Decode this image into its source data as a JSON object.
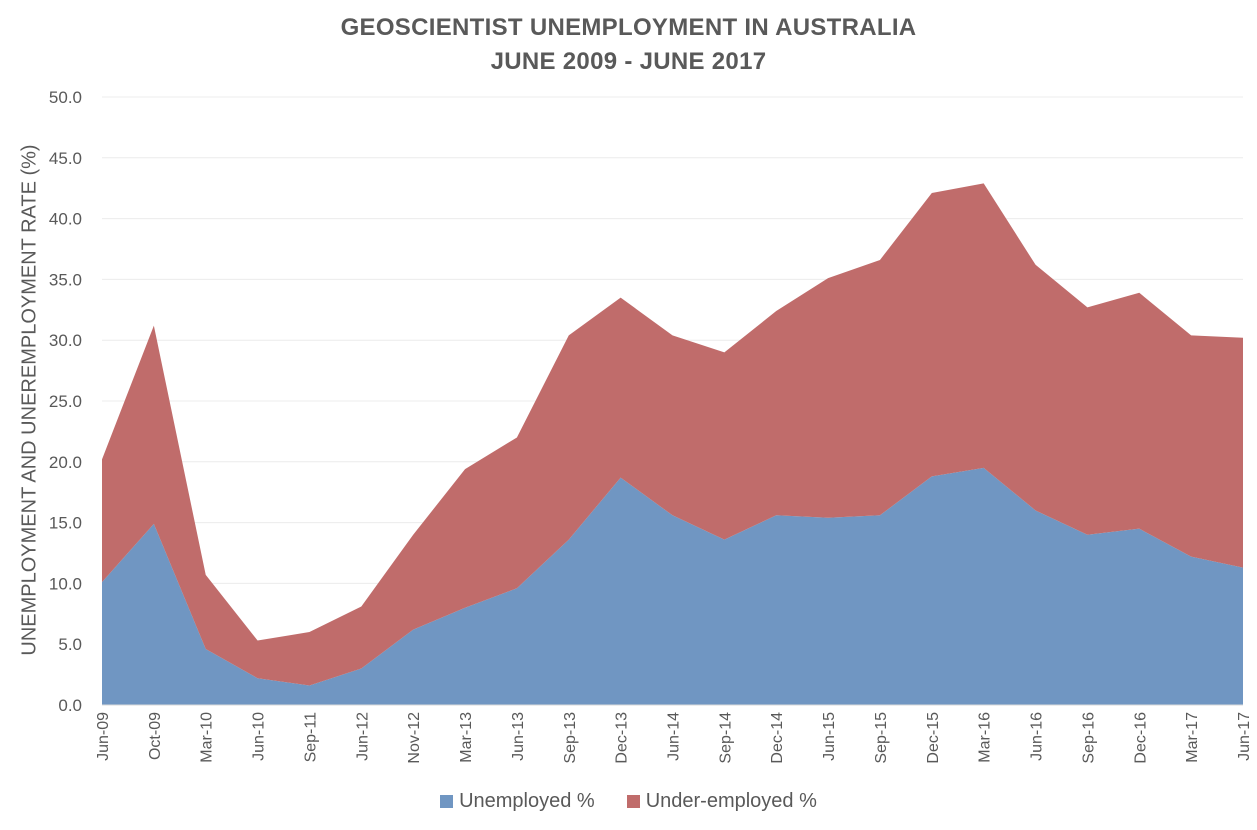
{
  "chart_data": {
    "type": "area",
    "stacked": true,
    "title": "GEOSCIENTIST UNEMPLOYMENT IN AUSTRALIA",
    "subtitle": "JUNE 2009 - JUNE 2017",
    "xlabel": "",
    "ylabel": "UNEMPLOYMENT AND UNEREMPLOYMENT RATE (%)",
    "ylim": [
      0,
      50
    ],
    "yticks": [
      "0.0",
      "5.0",
      "10.0",
      "15.0",
      "20.0",
      "25.0",
      "30.0",
      "35.0",
      "40.0",
      "45.0",
      "50.0"
    ],
    "grid": true,
    "legend_position": "bottom",
    "categories": [
      "Jun-09",
      "Oct-09",
      "Mar-10",
      "Jun-10",
      "Sep-11",
      "Jun-12",
      "Nov-12",
      "Mar-13",
      "Jun-13",
      "Sep-13",
      "Dec-13",
      "Jun-14",
      "Sep-14",
      "Dec-14",
      "Jun-15",
      "Sep-15",
      "Dec-15",
      "Mar-16",
      "Jun-16",
      "Sep-16",
      "Dec-16",
      "Mar-17",
      "Jun-17"
    ],
    "series": [
      {
        "name": "Unemployed %",
        "color": "#7096c2",
        "values": [
          10.1,
          14.9,
          4.6,
          2.2,
          1.6,
          3.0,
          6.2,
          8.0,
          9.6,
          13.6,
          18.7,
          15.6,
          13.6,
          15.6,
          15.4,
          15.6,
          18.8,
          19.5,
          16.0,
          14.0,
          14.5,
          12.2,
          11.3
        ]
      },
      {
        "name": "Under-employed %",
        "color": "#c06c6b",
        "values": [
          10.1,
          16.3,
          6.1,
          3.1,
          4.4,
          5.1,
          7.8,
          11.4,
          12.4,
          16.8,
          14.8,
          14.8,
          15.4,
          16.8,
          19.7,
          21.0,
          23.3,
          23.4,
          20.2,
          18.7,
          19.4,
          18.2,
          18.9
        ]
      }
    ]
  }
}
